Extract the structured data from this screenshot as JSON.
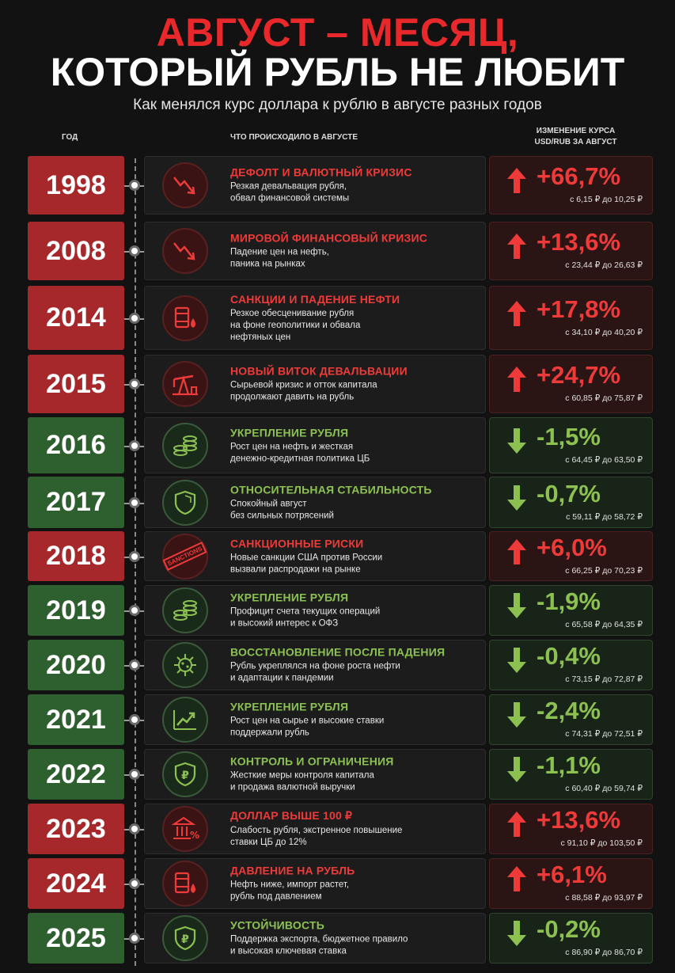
{
  "header": {
    "title_line1": "АВГУСТ – МЕСЯЦ,",
    "title_line2": "КОТОРЫЙ РУБЛЬ НЕ ЛЮБИТ",
    "subtitle": "Как менялся курс доллара к рублю в августе разных годов"
  },
  "columns": {
    "year": "ГОД",
    "event": "ЧТО ПРОИСХОДИЛО В АВГУСТЕ",
    "change_line1": "ИЗМЕНЕНИЕ КУРСА",
    "change_line2": "USD/RUB ЗА АВГУСТ"
  },
  "colors": {
    "up": "#ef3a3a",
    "down": "#8cc152",
    "year_up": "#a6282b",
    "year_down": "#2e5f2e"
  },
  "rows": [
    {
      "year": "1998",
      "dir": "up",
      "icon": "chart-down-icon",
      "title": "ДЕФОЛТ И ВАЛЮТНЫЙ КРИЗИС",
      "desc1": "Резкая девальвация рубля,",
      "desc2": "обвал финансовой системы",
      "desc3": "",
      "pct": "+66,7%",
      "range": "с 6,15 ₽ до 10,25 ₽"
    },
    {
      "year": "2008",
      "dir": "up",
      "icon": "chart-down-icon",
      "title": "МИРОВОЙ ФИНАНСОВЫЙ КРИЗИС",
      "desc1": "Падение цен на нефть,",
      "desc2": "паника на рынках",
      "desc3": "",
      "pct": "+13,6%",
      "range": "с 23,44 ₽ до 26,63 ₽"
    },
    {
      "year": "2014",
      "dir": "up",
      "icon": "oil-barrel-icon",
      "title": "САНКЦИИ И ПАДЕНИЕ НЕФТИ",
      "desc1": "Резкое обесценивание рубля",
      "desc2": "на фоне геополитики и обвала",
      "desc3": "нефтяных цен",
      "pct": "+17,8%",
      "range": "с 34,10 ₽ до 40,20 ₽"
    },
    {
      "year": "2015",
      "dir": "up",
      "icon": "oil-pump-icon",
      "title": "НОВЫЙ ВИТОК ДЕВАЛЬВАЦИИ",
      "desc1": "Сырьевой кризис и отток капитала",
      "desc2": "продолжают давить на рубль",
      "desc3": "",
      "pct": "+24,7%",
      "range": "с 60,85 ₽ до 75,87 ₽"
    },
    {
      "year": "2016",
      "dir": "down",
      "icon": "coins-icon",
      "title": "УКРЕПЛЕНИЕ РУБЛЯ",
      "desc1": "Рост цен на нефть и жесткая",
      "desc2": "денежно-кредитная политика ЦБ",
      "desc3": "",
      "pct": "-1,5%",
      "range": "с 64,45 ₽ до 63,50 ₽"
    },
    {
      "year": "2017",
      "dir": "down",
      "icon": "shield-icon",
      "title": "ОТНОСИТЕЛЬНАЯ СТАБИЛЬНОСТЬ",
      "desc1": "Спокойный август",
      "desc2": "без сильных потрясений",
      "desc3": "",
      "pct": "-0,7%",
      "range": "с 59,11 ₽ до 58,72 ₽"
    },
    {
      "year": "2018",
      "dir": "up",
      "icon": "sanctions-stamp-icon",
      "stamp": "SANCTIONS",
      "title": "САНКЦИОННЫЕ РИСКИ",
      "desc1": "Новые санкции США против России",
      "desc2": "вызвали распродажи на рынке",
      "desc3": "",
      "pct": "+6,0%",
      "range": "с 66,25 ₽ до 70,23 ₽"
    },
    {
      "year": "2019",
      "dir": "down",
      "icon": "coins-icon",
      "title": "УКРЕПЛЕНИЕ РУБЛЯ",
      "desc1": "Профицит счета текущих операций",
      "desc2": "и высокий интерес к ОФЗ",
      "desc3": "",
      "pct": "-1,9%",
      "range": "с 65,58 ₽ до 64,35 ₽"
    },
    {
      "year": "2020",
      "dir": "down",
      "icon": "virus-icon",
      "title": "ВОССТАНОВЛЕНИЕ ПОСЛЕ ПАДЕНИЯ",
      "desc1": "Рубль укреплялся на фоне роста нефти",
      "desc2": "и адаптации к пандемии",
      "desc3": "",
      "pct": "-0,4%",
      "range": "с 73,15 ₽ до 72,87 ₽"
    },
    {
      "year": "2021",
      "dir": "down",
      "icon": "chart-up-icon",
      "title": "УКРЕПЛЕНИЕ РУБЛЯ",
      "desc1": "Рост цен на сырье и высокие ставки",
      "desc2": "поддержали рубль",
      "desc3": "",
      "pct": "-2,4%",
      "range": "с 74,31 ₽ до 72,51 ₽"
    },
    {
      "year": "2022",
      "dir": "down",
      "icon": "ruble-shield-icon",
      "title": "КОНТРОЛЬ И ОГРАНИЧЕНИЯ",
      "desc1": "Жесткие меры контроля капитала",
      "desc2": "и продажа валютной выручки",
      "desc3": "",
      "pct": "-1,1%",
      "range": "с 60,40 ₽ до 59,74 ₽"
    },
    {
      "year": "2023",
      "dir": "up",
      "icon": "bank-percent-icon",
      "title": "ДОЛЛАР ВЫШЕ 100 ₽",
      "desc1": "Слабость рубля, экстренное повышение",
      "desc2": "ставки ЦБ до 12%",
      "desc3": "",
      "pct": "+13,6%",
      "range": "с 91,10 ₽ до 103,50 ₽"
    },
    {
      "year": "2024",
      "dir": "up",
      "icon": "oil-barrel-icon",
      "title": "ДАВЛЕНИЕ НА РУБЛЬ",
      "desc1": "Нефть ниже, импорт растет,",
      "desc2": "рубль под давлением",
      "desc3": "",
      "pct": "+6,1%",
      "range": "с 88,58 ₽ до 93,97 ₽"
    },
    {
      "year": "2025",
      "dir": "down",
      "icon": "ruble-shield-icon",
      "title": "УСТОЙЧИВОСТЬ",
      "desc1": "Поддержка экспорта, бюджетное правило",
      "desc2": "и высокая ключевая ставка",
      "desc3": "",
      "pct": "-0,2%",
      "range": "с 86,90 ₽ до 86,70 ₽"
    }
  ]
}
